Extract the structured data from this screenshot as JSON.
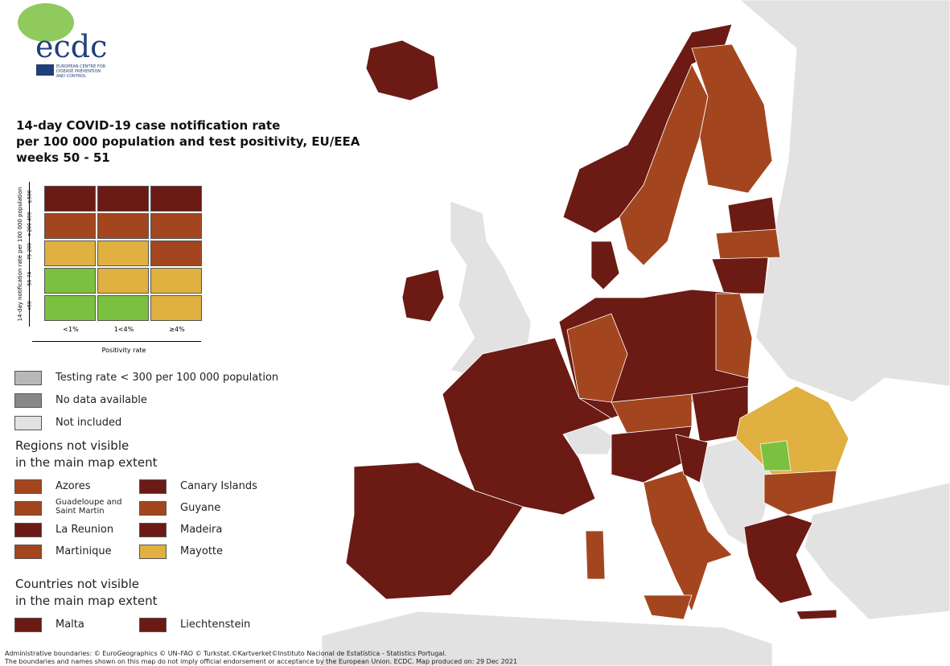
{
  "logo": {
    "text": "ecdc",
    "agency": [
      "EUROPEAN CENTRE FOR",
      "DISEASE PREVENTION",
      "AND CONTROL"
    ]
  },
  "title": [
    "14-day COVID-19 case notification rate",
    "per 100 000 population and test positivity, EU/EEA",
    "weeks 50 - 51"
  ],
  "matrix": {
    "y_label": "14-day notification rate per 100 000 population",
    "rows": [
      {
        "label": "≥500",
        "colors": [
          "#6b1a14",
          "#6b1a14",
          "#6b1a14"
        ]
      },
      {
        "label": ">200-499",
        "colors": [
          "#a3461f",
          "#a3461f",
          "#a3461f"
        ]
      },
      {
        "label": "75-200",
        "colors": [
          "#e0b040",
          "#e0b040",
          "#a3461f"
        ]
      },
      {
        "label": "50-74",
        "colors": [
          "#7cc040",
          "#e0b040",
          "#e0b040"
        ]
      },
      {
        "label": "<50",
        "colors": [
          "#7cc040",
          "#7cc040",
          "#e0b040"
        ]
      }
    ],
    "columns": [
      "<1%",
      "1<4%",
      "≥4%"
    ],
    "x_label": "Positivity rate"
  },
  "legend": [
    {
      "label": "Testing rate < 300 per 100 000 population",
      "color": "#b8b8b8"
    },
    {
      "label": "No data available",
      "color": "#888888"
    },
    {
      "label": "Not included",
      "color": "#e2e2e2"
    }
  ],
  "regions": {
    "title": [
      "Regions not visible",
      "in the main map extent"
    ],
    "items": [
      {
        "name": "Azores",
        "color": "#a3461f"
      },
      {
        "name": "Canary Islands",
        "color": "#6b1a14"
      },
      {
        "name": "Guadeloupe and Saint Martin",
        "color": "#a3461f"
      },
      {
        "name": "Guyane",
        "color": "#a3461f"
      },
      {
        "name": "La Reunion",
        "color": "#6b1a14"
      },
      {
        "name": "Madeira",
        "color": "#6b1a14"
      },
      {
        "name": "Martinique",
        "color": "#a3461f"
      },
      {
        "name": "Mayotte",
        "color": "#e0b040"
      }
    ]
  },
  "countries": {
    "title": [
      "Countries not visible",
      "in the main map extent"
    ],
    "items": [
      {
        "name": "Malta",
        "color": "#6b1a14"
      },
      {
        "name": "Liechtenstein",
        "color": "#6b1a14"
      }
    ]
  },
  "footer": [
    "Administrative boundaries: © EuroGeographics © UN–FAO © Turkstat.©Kartverket©Instituto Nacional de Estatística - Statistics Portugal.",
    "The boundaries and names shown on this map do not imply official endorsement or acceptance by the European Union. ECDC. Map produced on: 29 Dec 2021"
  ]
}
